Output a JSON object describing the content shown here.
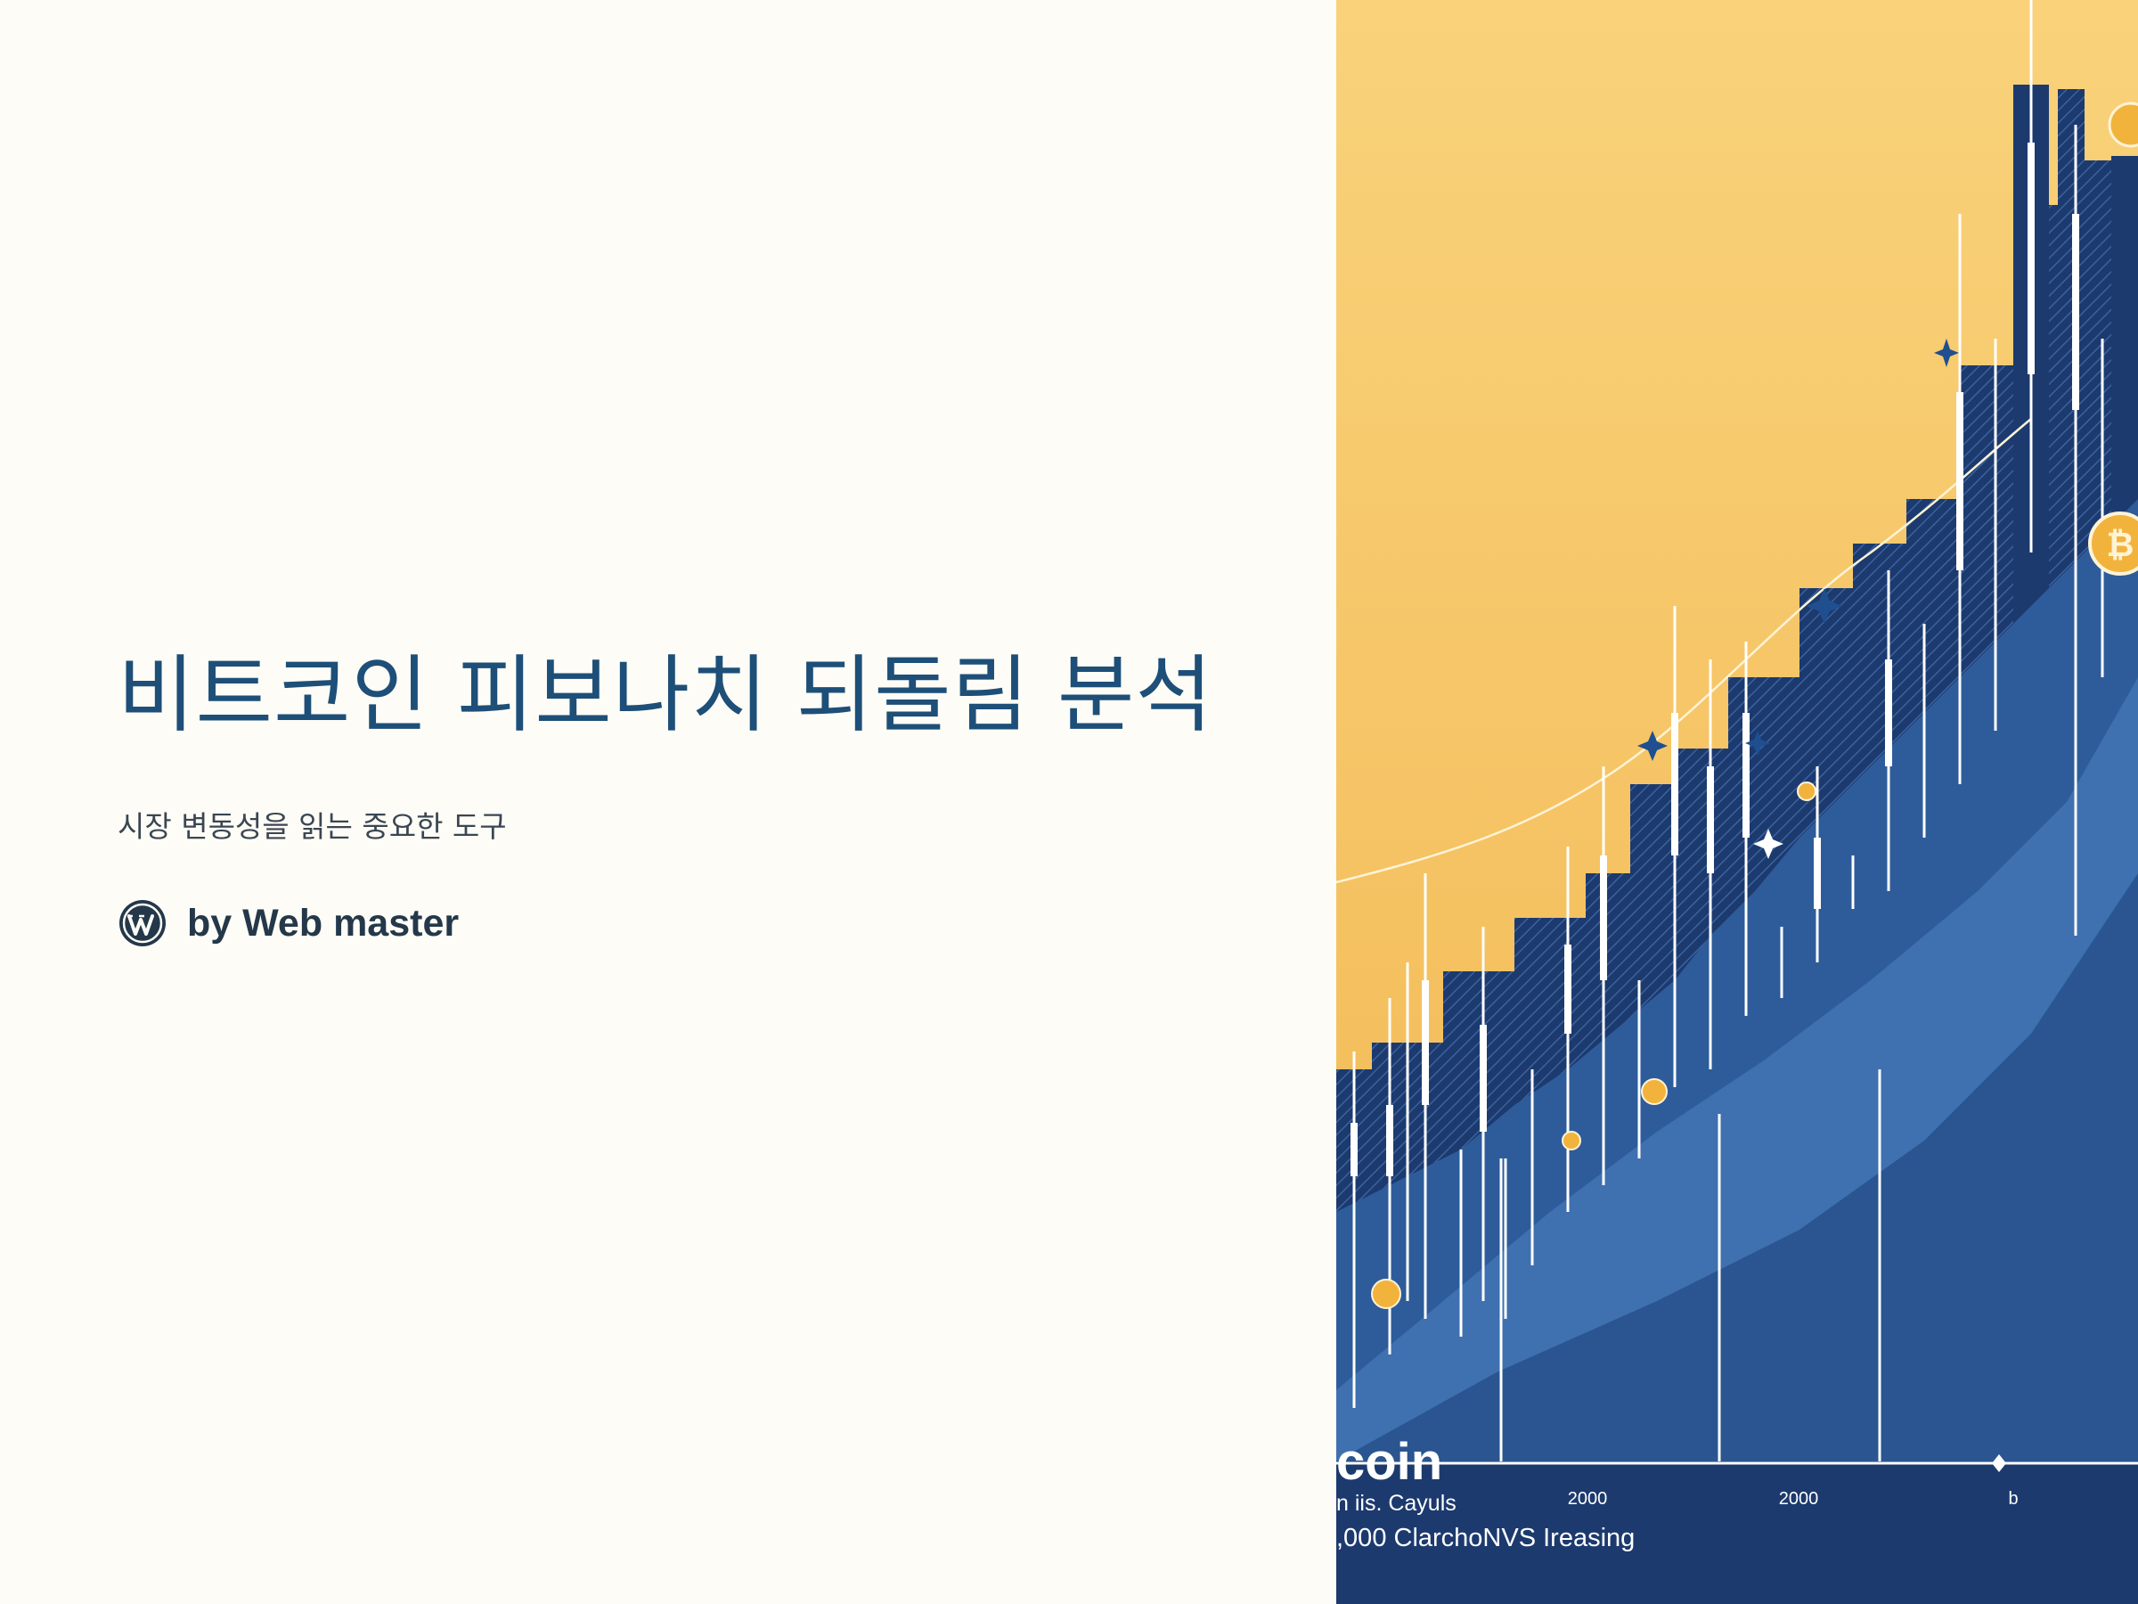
{
  "slide": {
    "title": "비트코인 피보나치 되돌림 분석",
    "subtitle": "시장 변동성을 읽는 중요한 도구",
    "author": "by Web master"
  },
  "hero_image": {
    "icon": "wordpress-icon",
    "word": "coin",
    "caption_line1": "n iis. Cayuls",
    "caption_line2": ",000 ClarchoNVS Ireasing",
    "axis_labels": [
      "2000",
      "2000",
      "b"
    ],
    "colors": {
      "sky": "#f7c96a",
      "navy": "#1c3a6e",
      "blue": "#2e5c9a",
      "light_blue": "#3f70b0",
      "coin": "#f2b33d"
    }
  },
  "colors": {
    "background": "#fefcf6",
    "title": "#1d4f78",
    "subtitle": "#3a4652",
    "author": "#24384a"
  }
}
